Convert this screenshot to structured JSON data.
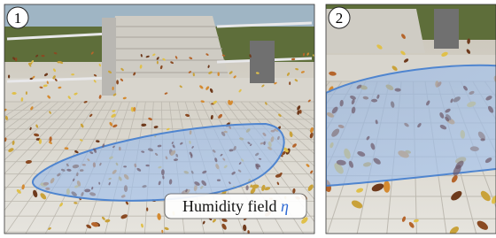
{
  "panels": [
    {
      "label": "1"
    },
    {
      "label": "2"
    }
  ],
  "annotation": {
    "text": "Humidity field",
    "symbol": "η"
  }
}
